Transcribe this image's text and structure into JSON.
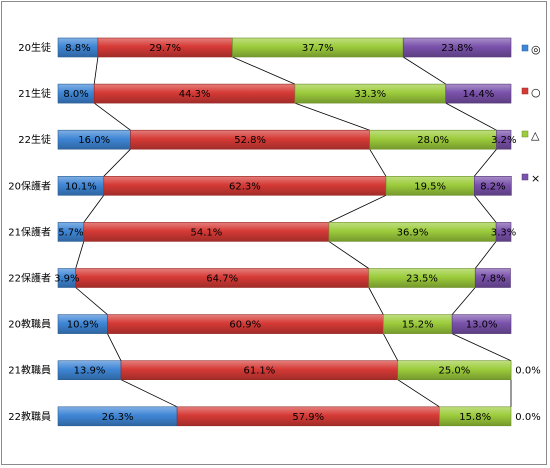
{
  "chart_data": {
    "type": "bar",
    "stacked": "percent",
    "orientation": "horizontal",
    "categories": [
      "20生徒",
      "21生徒",
      "22生徒",
      "20保護者",
      "21保護者",
      "22保護者",
      "20教職員",
      "21教職員",
      "22教職員"
    ],
    "series": [
      {
        "name": "◎",
        "color": "#3f86d6",
        "values": [
          8.8,
          8.0,
          16.0,
          10.1,
          5.7,
          3.9,
          10.9,
          13.9,
          26.3
        ]
      },
      {
        "name": "○",
        "color": "#d63a36",
        "values": [
          29.7,
          44.3,
          52.8,
          62.3,
          54.1,
          64.7,
          60.9,
          61.1,
          57.9
        ]
      },
      {
        "name": "△",
        "color": "#9ccc3c",
        "values": [
          37.7,
          33.3,
          28.0,
          19.5,
          36.9,
          23.5,
          15.2,
          25.0,
          15.8
        ]
      },
      {
        "name": "×",
        "color": "#7b52ac",
        "values": [
          23.8,
          14.4,
          3.2,
          8.2,
          3.3,
          7.8,
          13.0,
          0.0,
          0.0
        ]
      }
    ],
    "data_labels": [
      [
        "8.8%",
        "29.7%",
        "37.7%",
        "23.8%"
      ],
      [
        "8.0%",
        "44.3%",
        "33.3%",
        "14.4%"
      ],
      [
        "16.0%",
        "52.8%",
        "28.0%",
        "3.2%"
      ],
      [
        "10.1%",
        "62.3%",
        "19.5%",
        "8.2%"
      ],
      [
        "5.7%",
        "54.1%",
        "36.9%",
        "3.3%"
      ],
      [
        "3.9%",
        "64.7%",
        "23.5%",
        "7.8%"
      ],
      [
        "10.9%",
        "60.9%",
        "15.2%",
        "13.0%"
      ],
      [
        "13.9%",
        "61.1%",
        "25.0%",
        "0.0%"
      ],
      [
        "26.3%",
        "57.9%",
        "15.8%",
        "0.0%"
      ]
    ],
    "xlim": [
      0,
      100
    ],
    "series_lines": true,
    "grid": false,
    "legend_position": "right"
  }
}
